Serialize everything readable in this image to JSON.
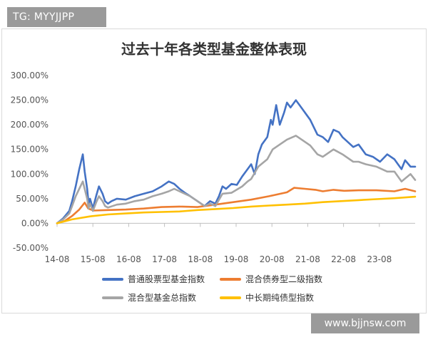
{
  "watermarks": {
    "top": "TG: MYYJJPP",
    "bottom": "www.bjjnsw.com"
  },
  "chart_data": {
    "type": "line",
    "title": "过去十年各类型基金整体表现",
    "xlabel": "",
    "ylabel": "",
    "x_ticks": [
      "14-08",
      "15-08",
      "16-08",
      "17-08",
      "18-08",
      "19-08",
      "20-08",
      "21-08",
      "22-08",
      "23-08"
    ],
    "y_ticks": [
      "-50.00%",
      "0.00%",
      "50.00%",
      "100.00%",
      "150.00%",
      "200.00%",
      "250.00%",
      "300.00%"
    ],
    "ylim": [
      -50,
      300
    ],
    "xlim": [
      2014.58,
      2024.58
    ],
    "grid": false,
    "legend_position": "bottom",
    "series": [
      {
        "name": "普通股票型基金指数",
        "color": "#4472c4",
        "x": [
          2014.58,
          2014.75,
          2014.92,
          2015.0,
          2015.1,
          2015.2,
          2015.3,
          2015.35,
          2015.42,
          2015.46,
          2015.5,
          2015.58,
          2015.67,
          2015.75,
          2015.85,
          2015.92,
          2016.0,
          2016.1,
          2016.25,
          2016.5,
          2016.75,
          2017.0,
          2017.25,
          2017.5,
          2017.7,
          2017.85,
          2018.0,
          2018.15,
          2018.3,
          2018.5,
          2018.7,
          2018.85,
          2019.0,
          2019.1,
          2019.2,
          2019.3,
          2019.45,
          2019.6,
          2019.75,
          2019.9,
          2020.0,
          2020.1,
          2020.2,
          2020.3,
          2020.45,
          2020.55,
          2020.6,
          2020.7,
          2020.8,
          2020.92,
          2021.0,
          2021.1,
          2021.25,
          2021.35,
          2021.45,
          2021.55,
          2021.65,
          2021.75,
          2021.85,
          2022.0,
          2022.15,
          2022.3,
          2022.45,
          2022.55,
          2022.7,
          2022.85,
          2023.0,
          2023.1,
          2023.2,
          2023.4,
          2023.6,
          2023.8,
          2024.0,
          2024.1,
          2024.2,
          2024.3,
          2024.45,
          2024.58
        ],
        "values": [
          0,
          10,
          25,
          45,
          75,
          110,
          140,
          105,
          70,
          40,
          50,
          30,
          55,
          75,
          60,
          45,
          40,
          45,
          50,
          48,
          55,
          60,
          65,
          75,
          85,
          80,
          70,
          62,
          55,
          45,
          35,
          45,
          40,
          55,
          75,
          70,
          80,
          78,
          95,
          110,
          120,
          100,
          140,
          160,
          175,
          210,
          200,
          240,
          200,
          225,
          245,
          235,
          250,
          240,
          230,
          220,
          210,
          195,
          180,
          175,
          165,
          190,
          185,
          175,
          165,
          155,
          160,
          150,
          140,
          135,
          125,
          140,
          130,
          120,
          110,
          128,
          115,
          115
        ]
      },
      {
        "name": "混合债券型二级指数",
        "color": "#ed7d31",
        "x": [
          2014.58,
          2014.8,
          2015.0,
          2015.2,
          2015.35,
          2015.45,
          2015.6,
          2016.0,
          2016.5,
          2017.0,
          2017.5,
          2018.0,
          2018.5,
          2019.0,
          2019.5,
          2020.0,
          2020.5,
          2021.0,
          2021.2,
          2021.5,
          2021.8,
          2022.0,
          2022.3,
          2022.6,
          2023.0,
          2023.5,
          2024.0,
          2024.3,
          2024.58
        ],
        "values": [
          0,
          5,
          15,
          28,
          42,
          30,
          26,
          27,
          28,
          30,
          33,
          34,
          33,
          38,
          43,
          48,
          55,
          63,
          72,
          70,
          68,
          65,
          68,
          66,
          67,
          67,
          65,
          70,
          65
        ]
      },
      {
        "name": "混合型基金总指数",
        "color": "#a5a5a5",
        "x": [
          2014.58,
          2014.75,
          2014.92,
          2015.0,
          2015.1,
          2015.2,
          2015.3,
          2015.35,
          2015.42,
          2015.46,
          2015.5,
          2015.58,
          2015.67,
          2015.75,
          2015.85,
          2015.92,
          2016.0,
          2016.25,
          2016.5,
          2016.75,
          2017.0,
          2017.25,
          2017.5,
          2017.7,
          2017.85,
          2018.0,
          2018.3,
          2018.5,
          2018.7,
          2018.85,
          2019.0,
          2019.2,
          2019.45,
          2019.75,
          2019.9,
          2020.0,
          2020.2,
          2020.45,
          2020.6,
          2020.8,
          2021.0,
          2021.25,
          2021.45,
          2021.65,
          2021.85,
          2022.0,
          2022.3,
          2022.55,
          2022.85,
          2023.0,
          2023.2,
          2023.5,
          2023.8,
          2024.0,
          2024.2,
          2024.45,
          2024.58
        ],
        "values": [
          0,
          8,
          20,
          35,
          55,
          70,
          85,
          70,
          50,
          30,
          40,
          25,
          42,
          55,
          45,
          35,
          32,
          38,
          40,
          45,
          48,
          55,
          60,
          65,
          70,
          65,
          55,
          45,
          35,
          40,
          35,
          60,
          62,
          75,
          85,
          90,
          115,
          130,
          150,
          160,
          170,
          178,
          168,
          158,
          140,
          135,
          150,
          140,
          125,
          125,
          120,
          115,
          105,
          105,
          85,
          100,
          88
        ]
      },
      {
        "name": "中长期纯债型指数",
        "color": "#ffc000",
        "x": [
          2014.58,
          2015.0,
          2015.5,
          2016.0,
          2016.5,
          2017.0,
          2017.5,
          2018.0,
          2018.5,
          2019.0,
          2019.5,
          2020.0,
          2020.5,
          2021.0,
          2021.5,
          2022.0,
          2022.5,
          2023.0,
          2023.5,
          2024.0,
          2024.58
        ],
        "values": [
          0,
          8,
          14,
          18,
          20,
          22,
          23,
          24,
          27,
          29,
          31,
          34,
          36,
          38,
          40,
          43,
          45,
          47,
          49,
          51,
          54
        ]
      }
    ]
  }
}
